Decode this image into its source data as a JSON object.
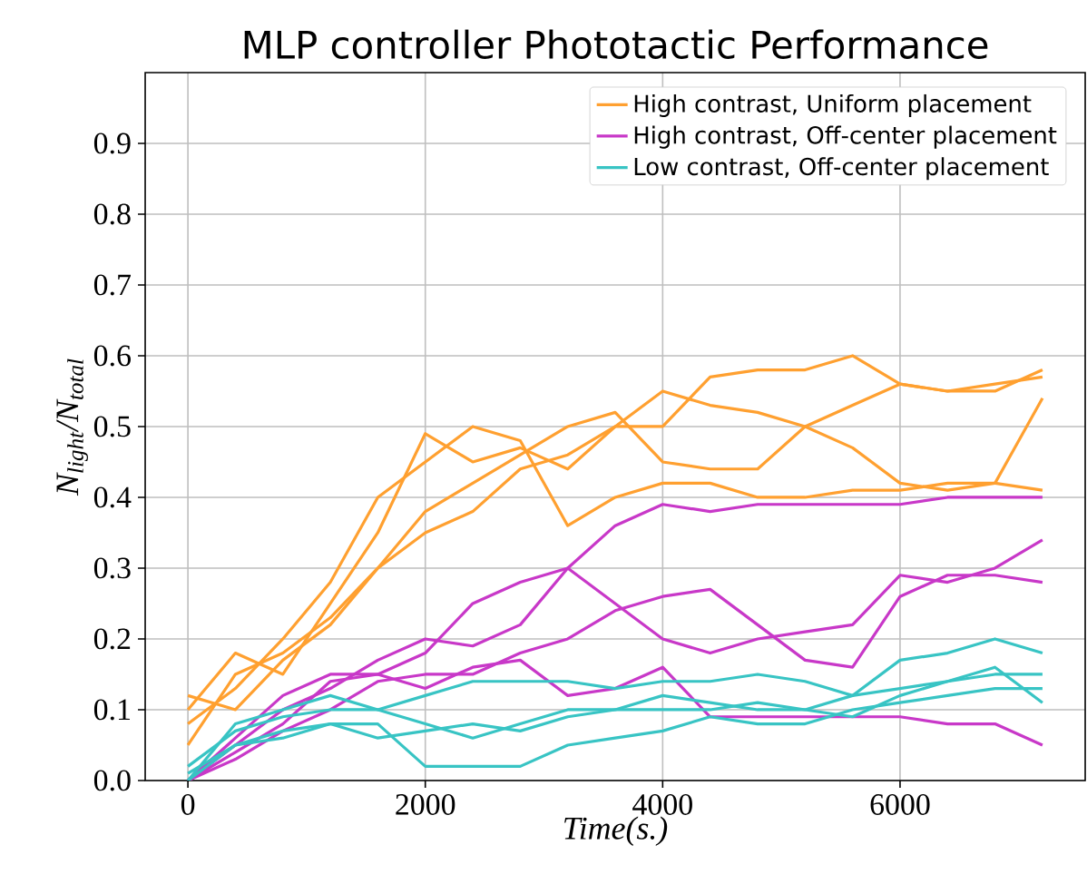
{
  "chart_data": {
    "type": "line",
    "title": "MLP controller Phototactic Performance",
    "xlabel": "Time(s.)",
    "ylabel": "N$_{light}$/N$_{total}$",
    "x": [
      0,
      400,
      800,
      1200,
      1600,
      2000,
      2400,
      2800,
      3200,
      3600,
      4000,
      4400,
      4800,
      5200,
      5600,
      6000,
      6400,
      6800,
      7200
    ],
    "series": [
      {
        "name": "High contrast, Uniform placement",
        "color": "#ffa030",
        "values": [
          0.1,
          0.18,
          0.15,
          0.25,
          0.35,
          0.49,
          0.45,
          0.47,
          0.44,
          0.5,
          0.5,
          0.57,
          0.58,
          0.58,
          0.6,
          0.56,
          0.55,
          0.56,
          0.57
        ]
      },
      {
        "color": "#ffa030",
        "values": [
          0.08,
          0.13,
          0.2,
          0.28,
          0.4,
          0.45,
          0.5,
          0.48,
          0.36,
          0.4,
          0.42,
          0.42,
          0.4,
          0.4,
          0.41,
          0.41,
          0.42,
          0.42,
          0.41
        ]
      },
      {
        "color": "#ffa030",
        "values": [
          0.12,
          0.1,
          0.17,
          0.22,
          0.3,
          0.38,
          0.42,
          0.46,
          0.5,
          0.52,
          0.45,
          0.44,
          0.44,
          0.5,
          0.47,
          0.42,
          0.41,
          0.42,
          0.54
        ]
      },
      {
        "color": "#ffa030",
        "values": [
          0.05,
          0.15,
          0.18,
          0.23,
          0.3,
          0.35,
          0.38,
          0.44,
          0.46,
          0.5,
          0.55,
          0.53,
          0.52,
          0.5,
          0.53,
          0.56,
          0.55,
          0.55,
          0.58
        ]
      },
      {
        "name": "High contrast, Off-center placement",
        "color": "#c838c8",
        "values": [
          0.0,
          0.05,
          0.1,
          0.13,
          0.17,
          0.2,
          0.19,
          0.22,
          0.3,
          0.36,
          0.39,
          0.38,
          0.39,
          0.39,
          0.39,
          0.39,
          0.4,
          0.4,
          0.4
        ]
      },
      {
        "color": "#c838c8",
        "values": [
          0.0,
          0.06,
          0.12,
          0.15,
          0.15,
          0.18,
          0.25,
          0.28,
          0.3,
          0.25,
          0.2,
          0.18,
          0.2,
          0.21,
          0.22,
          0.29,
          0.28,
          0.3,
          0.34
        ]
      },
      {
        "color": "#c838c8",
        "values": [
          0.0,
          0.03,
          0.07,
          0.1,
          0.14,
          0.15,
          0.15,
          0.18,
          0.2,
          0.24,
          0.26,
          0.27,
          0.22,
          0.17,
          0.16,
          0.26,
          0.29,
          0.29,
          0.28
        ]
      },
      {
        "color": "#c838c8",
        "values": [
          0.0,
          0.04,
          0.08,
          0.14,
          0.15,
          0.13,
          0.16,
          0.17,
          0.12,
          0.13,
          0.16,
          0.09,
          0.09,
          0.09,
          0.09,
          0.09,
          0.08,
          0.08,
          0.05
        ]
      },
      {
        "name": "Low contrast, Off-center placement",
        "color": "#38c4c4",
        "values": [
          0.0,
          0.08,
          0.1,
          0.12,
          0.1,
          0.08,
          0.06,
          0.08,
          0.1,
          0.1,
          0.12,
          0.11,
          0.1,
          0.1,
          0.12,
          0.17,
          0.18,
          0.2,
          0.18
        ]
      },
      {
        "color": "#38c4c4",
        "values": [
          0.02,
          0.07,
          0.09,
          0.1,
          0.1,
          0.12,
          0.14,
          0.14,
          0.14,
          0.13,
          0.14,
          0.14,
          0.15,
          0.14,
          0.12,
          0.13,
          0.14,
          0.15,
          0.15
        ]
      },
      {
        "color": "#38c4c4",
        "values": [
          0.0,
          0.05,
          0.06,
          0.08,
          0.08,
          0.02,
          0.02,
          0.02,
          0.05,
          0.06,
          0.07,
          0.09,
          0.08,
          0.08,
          0.1,
          0.11,
          0.12,
          0.13,
          0.13
        ]
      },
      {
        "color": "#38c4c4",
        "values": [
          0.01,
          0.05,
          0.07,
          0.08,
          0.06,
          0.07,
          0.08,
          0.07,
          0.09,
          0.1,
          0.1,
          0.1,
          0.11,
          0.1,
          0.09,
          0.12,
          0.14,
          0.16,
          0.11
        ]
      }
    ],
    "xlim": [
      -360,
      7560
    ],
    "ylim": [
      0,
      1.0
    ],
    "xticks": [
      0,
      2000,
      4000,
      6000
    ],
    "yticks": [
      {
        "value": 0,
        "label": "0.0"
      },
      {
        "value": 0.1,
        "label": "0.1"
      },
      {
        "value": 0.2,
        "label": "0.2"
      },
      {
        "value": 0.3,
        "label": "0.3"
      },
      {
        "value": 0.4,
        "label": "0.4"
      },
      {
        "value": 0.5,
        "label": "0.5"
      },
      {
        "value": 0.6,
        "label": "0.6"
      },
      {
        "value": 0.7,
        "label": "0.7"
      },
      {
        "value": 0.8,
        "label": "0.8"
      },
      {
        "value": 0.9,
        "label": "0.9"
      }
    ],
    "grid": true,
    "legend": "top right",
    "marker": "none",
    "line_style": "solid"
  }
}
